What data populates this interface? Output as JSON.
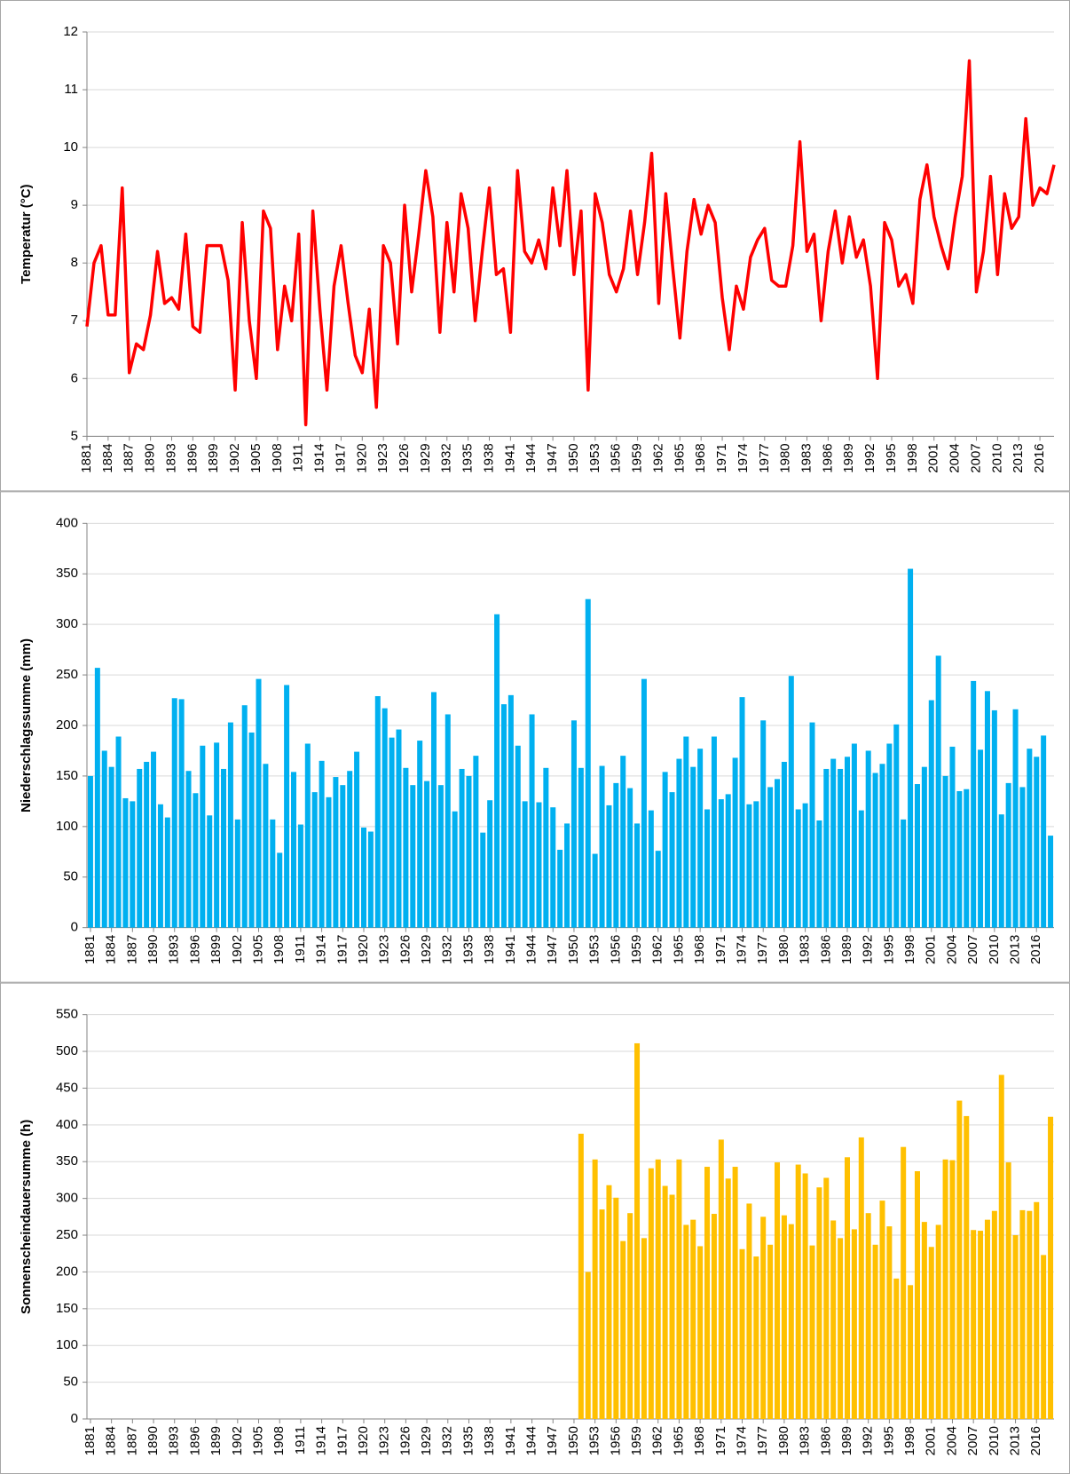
{
  "chart_data": [
    {
      "type": "line",
      "ylabel": "Temperatur (°C)",
      "color": "#ff0000",
      "grid": true,
      "ylim": [
        5,
        12
      ],
      "yticks": [
        5,
        6,
        7,
        8,
        9,
        10,
        11,
        12
      ],
      "categories": [
        "1881",
        null,
        null,
        "1884",
        null,
        null,
        "1887",
        null,
        null,
        "1890",
        null,
        null,
        "1893",
        null,
        null,
        "1896",
        null,
        null,
        "1899",
        null,
        null,
        "1902",
        null,
        null,
        "1905",
        null,
        null,
        "1908",
        null,
        null,
        "1911",
        null,
        null,
        "1914",
        null,
        null,
        "1917",
        null,
        null,
        "1920",
        null,
        null,
        "1923",
        null,
        null,
        "1926",
        null,
        null,
        "1929",
        null,
        null,
        "1932",
        null,
        null,
        "1935",
        null,
        null,
        "1938",
        null,
        null,
        "1941",
        null,
        null,
        "1944",
        null,
        null,
        "1947",
        null,
        null,
        "1950",
        null,
        null,
        "1953",
        null,
        null,
        "1956",
        null,
        null,
        "1959",
        null,
        null,
        "1962",
        null,
        null,
        "1965",
        null,
        null,
        "1968",
        null,
        null,
        "1971",
        null,
        null,
        "1974",
        null,
        null,
        "1977",
        null,
        null,
        "1980",
        null,
        null,
        "1983",
        null,
        null,
        "1986",
        null,
        null,
        "1989",
        null,
        null,
        "1992",
        null,
        null,
        "1995",
        null,
        null,
        "1998",
        null,
        null,
        "2001",
        null,
        null,
        "2004",
        null,
        null,
        "2007",
        null,
        null,
        "2010",
        null,
        null,
        "2013",
        null,
        null,
        "2016",
        null,
        null
      ],
      "values": [
        6.9,
        8.0,
        8.3,
        7.1,
        7.1,
        9.3,
        6.1,
        6.6,
        6.5,
        7.1,
        8.2,
        7.3,
        7.4,
        7.2,
        8.5,
        6.9,
        6.8,
        8.3,
        8.3,
        8.3,
        7.7,
        5.8,
        8.7,
        7.0,
        6.0,
        8.9,
        8.6,
        6.5,
        7.6,
        7.0,
        8.5,
        5.2,
        8.9,
        7.2,
        5.8,
        7.6,
        8.3,
        7.3,
        6.4,
        6.1,
        7.2,
        5.5,
        8.3,
        8.0,
        6.6,
        9.0,
        7.5,
        8.5,
        9.6,
        8.8,
        6.8,
        8.7,
        7.5,
        9.2,
        8.6,
        7.0,
        8.2,
        9.3,
        7.8,
        7.9,
        6.8,
        9.6,
        8.2,
        8.0,
        8.4,
        7.9,
        9.3,
        8.3,
        9.6,
        7.8,
        8.9,
        5.8,
        9.2,
        8.7,
        7.8,
        7.5,
        7.9,
        8.9,
        7.8,
        8.7,
        9.9,
        7.3,
        9.2,
        7.9,
        6.7,
        8.2,
        9.1,
        8.5,
        9.0,
        8.7,
        7.4,
        6.5,
        7.6,
        7.2,
        8.1,
        8.4,
        8.6,
        7.7,
        7.6,
        7.6,
        8.3,
        10.1,
        8.2,
        8.5,
        7.0,
        8.2,
        8.9,
        8.0,
        8.8,
        8.1,
        8.4,
        7.6,
        6.0,
        8.7,
        8.4,
        7.6,
        7.8,
        7.3,
        9.1,
        9.7,
        8.8,
        8.3,
        7.9,
        8.8,
        9.5,
        11.5,
        7.5,
        8.2,
        9.5,
        7.8,
        9.2,
        8.6,
        8.8,
        10.5,
        9.0,
        9.3,
        9.2,
        9.7
      ]
    },
    {
      "type": "bar",
      "ylabel": "Niederschlagssumme (mm)",
      "color": "#00b0f0",
      "grid": true,
      "ylim": [
        0,
        400
      ],
      "yticks": [
        0,
        50,
        100,
        150,
        200,
        250,
        300,
        350,
        400
      ],
      "categories": [
        "1881",
        null,
        null,
        "1884",
        null,
        null,
        "1887",
        null,
        null,
        "1890",
        null,
        null,
        "1893",
        null,
        null,
        "1896",
        null,
        null,
        "1899",
        null,
        null,
        "1902",
        null,
        null,
        "1905",
        null,
        null,
        "1908",
        null,
        null,
        "1911",
        null,
        null,
        "1914",
        null,
        null,
        "1917",
        null,
        null,
        "1920",
        null,
        null,
        "1923",
        null,
        null,
        "1926",
        null,
        null,
        "1929",
        null,
        null,
        "1932",
        null,
        null,
        "1935",
        null,
        null,
        "1938",
        null,
        null,
        "1941",
        null,
        null,
        "1944",
        null,
        null,
        "1947",
        null,
        null,
        "1950",
        null,
        null,
        "1953",
        null,
        null,
        "1956",
        null,
        null,
        "1959",
        null,
        null,
        "1962",
        null,
        null,
        "1965",
        null,
        null,
        "1968",
        null,
        null,
        "1971",
        null,
        null,
        "1974",
        null,
        null,
        "1977",
        null,
        null,
        "1980",
        null,
        null,
        "1983",
        null,
        null,
        "1986",
        null,
        null,
        "1989",
        null,
        null,
        "1992",
        null,
        null,
        "1995",
        null,
        null,
        "1998",
        null,
        null,
        "2001",
        null,
        null,
        "2004",
        null,
        null,
        "2007",
        null,
        null,
        "2010",
        null,
        null,
        "2013",
        null,
        null,
        "2016",
        null,
        null
      ],
      "values": [
        150,
        257,
        175,
        159,
        189,
        128,
        125,
        157,
        164,
        174,
        122,
        109,
        227,
        226,
        155,
        133,
        180,
        111,
        183,
        157,
        203,
        107,
        220,
        193,
        246,
        162,
        107,
        74,
        240,
        154,
        102,
        182,
        134,
        165,
        129,
        149,
        141,
        155,
        174,
        99,
        95,
        229,
        217,
        188,
        196,
        158,
        141,
        185,
        145,
        233,
        141,
        211,
        115,
        157,
        150,
        170,
        94,
        126,
        310,
        221,
        230,
        180,
        125,
        211,
        124,
        158,
        119,
        77,
        103,
        205,
        158,
        325,
        73,
        160,
        121,
        143,
        170,
        138,
        103,
        246,
        116,
        76,
        154,
        134,
        167,
        189,
        159,
        177,
        117,
        189,
        127,
        132,
        168,
        228,
        122,
        125,
        205,
        139,
        147,
        164,
        249,
        117,
        123,
        203,
        106,
        157,
        167,
        157,
        169,
        182,
        116,
        175,
        153,
        162,
        182,
        201,
        107,
        355,
        142,
        159,
        225,
        269,
        150,
        179,
        135,
        137,
        244,
        176,
        234,
        215,
        112,
        143,
        216,
        139,
        177,
        169,
        190,
        91
      ]
    },
    {
      "type": "bar",
      "ylabel": "Sonnenscheindauersumme (h)",
      "color": "#ffc000",
      "grid": true,
      "ylim": [
        0,
        550
      ],
      "yticks": [
        0,
        50,
        100,
        150,
        200,
        250,
        300,
        350,
        400,
        450,
        500,
        550
      ],
      "categories": [
        "1881",
        null,
        null,
        "1884",
        null,
        null,
        "1887",
        null,
        null,
        "1890",
        null,
        null,
        "1893",
        null,
        null,
        "1896",
        null,
        null,
        "1899",
        null,
        null,
        "1902",
        null,
        null,
        "1905",
        null,
        null,
        "1908",
        null,
        null,
        "1911",
        null,
        null,
        "1914",
        null,
        null,
        "1917",
        null,
        null,
        "1920",
        null,
        null,
        "1923",
        null,
        null,
        "1926",
        null,
        null,
        "1929",
        null,
        null,
        "1932",
        null,
        null,
        "1935",
        null,
        null,
        "1938",
        null,
        null,
        "1941",
        null,
        null,
        "1944",
        null,
        null,
        "1947",
        null,
        null,
        "1950",
        null,
        null,
        "1953",
        null,
        null,
        "1956",
        null,
        null,
        "1959",
        null,
        null,
        "1962",
        null,
        null,
        "1965",
        null,
        null,
        "1968",
        null,
        null,
        "1971",
        null,
        null,
        "1974",
        null,
        null,
        "1977",
        null,
        null,
        "1980",
        null,
        null,
        "1983",
        null,
        null,
        "1986",
        null,
        null,
        "1989",
        null,
        null,
        "1992",
        null,
        null,
        "1995",
        null,
        null,
        "1998",
        null,
        null,
        "2001",
        null,
        null,
        "2004",
        null,
        null,
        "2007",
        null,
        null,
        "2010",
        null,
        null,
        "2013",
        null,
        null,
        "2016",
        null,
        null
      ],
      "values": [
        null,
        null,
        null,
        null,
        null,
        null,
        null,
        null,
        null,
        null,
        null,
        null,
        null,
        null,
        null,
        null,
        null,
        null,
        null,
        null,
        null,
        null,
        null,
        null,
        null,
        null,
        null,
        null,
        null,
        null,
        null,
        null,
        null,
        null,
        null,
        null,
        null,
        null,
        null,
        null,
        null,
        null,
        null,
        null,
        null,
        null,
        null,
        null,
        null,
        null,
        null,
        null,
        null,
        null,
        null,
        null,
        null,
        null,
        null,
        null,
        null,
        null,
        null,
        null,
        null,
        null,
        null,
        null,
        null,
        null,
        388,
        200,
        353,
        285,
        318,
        301,
        242,
        280,
        511,
        246,
        341,
        353,
        317,
        305,
        353,
        264,
        271,
        235,
        343,
        279,
        380,
        327,
        343,
        231,
        293,
        221,
        275,
        237,
        349,
        277,
        265,
        346,
        334,
        236,
        315,
        328,
        270,
        246,
        356,
        258,
        383,
        280,
        237,
        297,
        262,
        191,
        370,
        182,
        337,
        268,
        234,
        264,
        353,
        352,
        433,
        412,
        257,
        256,
        271,
        283,
        468,
        349,
        250,
        284,
        283,
        295,
        223,
        411
      ]
    }
  ]
}
